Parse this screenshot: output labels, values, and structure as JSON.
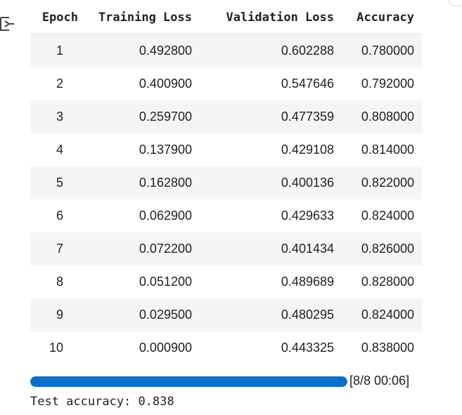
{
  "table": {
    "headers": {
      "epoch": "Epoch",
      "training_loss": "Training Loss",
      "validation_loss": "Validation Loss",
      "accuracy": "Accuracy"
    },
    "rows": [
      {
        "epoch": "1",
        "training_loss": "0.492800",
        "validation_loss": "0.602288",
        "accuracy": "0.780000"
      },
      {
        "epoch": "2",
        "training_loss": "0.400900",
        "validation_loss": "0.547646",
        "accuracy": "0.792000"
      },
      {
        "epoch": "3",
        "training_loss": "0.259700",
        "validation_loss": "0.477359",
        "accuracy": "0.808000"
      },
      {
        "epoch": "4",
        "training_loss": "0.137900",
        "validation_loss": "0.429108",
        "accuracy": "0.814000"
      },
      {
        "epoch": "5",
        "training_loss": "0.162800",
        "validation_loss": "0.400136",
        "accuracy": "0.822000"
      },
      {
        "epoch": "6",
        "training_loss": "0.062900",
        "validation_loss": "0.429633",
        "accuracy": "0.824000"
      },
      {
        "epoch": "7",
        "training_loss": "0.072200",
        "validation_loss": "0.401434",
        "accuracy": "0.826000"
      },
      {
        "epoch": "8",
        "training_loss": "0.051200",
        "validation_loss": "0.489689",
        "accuracy": "0.828000"
      },
      {
        "epoch": "9",
        "training_loss": "0.029500",
        "validation_loss": "0.480295",
        "accuracy": "0.824000"
      },
      {
        "epoch": "10",
        "training_loss": "0.000900",
        "validation_loss": "0.443325",
        "accuracy": "0.838000"
      }
    ]
  },
  "progress": {
    "fraction": 1.0,
    "text": "[8/8 00:06]",
    "fill_color": "#0d6fcc"
  },
  "test_output": "Test accuracy: 0.838",
  "icons": {
    "output_toggle": "output-expand-icon"
  }
}
